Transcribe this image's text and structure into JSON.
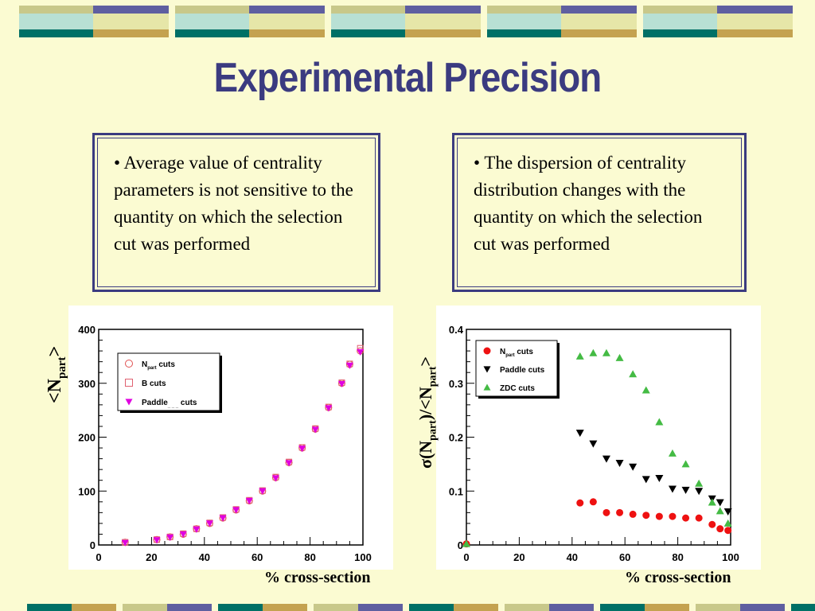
{
  "title": "Experimental Precision",
  "left_box": {
    "bullet": "•",
    "text": "Average value of centrality parameters is not sensitive to the quantity on which the selection cut was performed"
  },
  "right_box": {
    "bullet": "•",
    "text": "The dispersion of centrality distribution changes with the quantity on which the selection cut was performed"
  },
  "colors": {
    "background": "#fbfbd2",
    "title": "#3b3b80",
    "banner": [
      "#c8c88a",
      "#5f5fa0",
      "#b8e0d4",
      "#e6e6a8",
      "#007066",
      "#c4a250"
    ]
  },
  "chart_data": [
    {
      "type": "scatter",
      "ylabel": "<Npart>",
      "ylabel_main": "<N",
      "ylabel_sub": "part",
      "ylabel_end": ">",
      "xlabel": "% cross-section",
      "xlim": [
        0,
        100
      ],
      "ylim": [
        0,
        400
      ],
      "xticks": [
        0,
        20,
        40,
        60,
        80,
        100
      ],
      "yticks": [
        0,
        100,
        200,
        300,
        400
      ],
      "grid": false,
      "legend_position": "top-left",
      "legend": [
        {
          "main": "N",
          "sub": "part",
          "after": " cuts",
          "marker": "open-circle",
          "color": "#e05050"
        },
        {
          "main": "B cuts",
          "sub": "",
          "after": "",
          "marker": "open-square",
          "color": "#e06070"
        },
        {
          "main": "Paddle",
          "sub": "_ _ _",
          "after": " cuts",
          "marker": "triangle-down",
          "color": "#e000e0"
        }
      ],
      "series": [
        {
          "name": "Npart cuts",
          "x": [
            10,
            22,
            27,
            32,
            37,
            42,
            47,
            52,
            57,
            62,
            67,
            72,
            77,
            82,
            87,
            92,
            95,
            99
          ],
          "y": [
            5,
            10,
            15,
            20,
            30,
            40,
            50,
            65,
            82,
            100,
            125,
            153,
            180,
            215,
            255,
            300,
            335,
            360
          ]
        },
        {
          "name": "B cuts",
          "x": [
            10,
            22,
            27,
            32,
            37,
            42,
            47,
            52,
            57,
            62,
            67,
            72,
            77,
            82,
            87,
            92,
            95,
            99
          ],
          "y": [
            5,
            10,
            15,
            21,
            30,
            41,
            51,
            66,
            83,
            101,
            126,
            154,
            181,
            216,
            256,
            301,
            336,
            365
          ]
        },
        {
          "name": "Paddle cuts",
          "x": [
            10,
            22,
            27,
            32,
            37,
            42,
            47,
            52,
            57,
            62,
            67,
            72,
            77,
            82,
            87,
            92,
            95,
            99
          ],
          "y": [
            4,
            9,
            14,
            20,
            29,
            40,
            50,
            65,
            82,
            100,
            124,
            152,
            179,
            214,
            254,
            299,
            333,
            358
          ]
        }
      ]
    },
    {
      "type": "scatter",
      "ylabel": "σ(Npart)/<Npart>",
      "ylabel_parts": [
        "σ(N",
        "part",
        ")/<N",
        "part",
        ">"
      ],
      "xlabel": "% cross-section",
      "xlim": [
        0,
        100
      ],
      "ylim": [
        0,
        0.4
      ],
      "xticks": [
        0,
        20,
        40,
        60,
        80,
        100
      ],
      "yticks": [
        0,
        0.1,
        0.2,
        0.3,
        0.4
      ],
      "ytick_labels": [
        "0",
        "0.1",
        "0.2",
        "0.3",
        "0.4"
      ],
      "grid": false,
      "legend_position": "top-left",
      "legend": [
        {
          "main": "N",
          "sub": "part",
          "after": " cuts",
          "marker": "circle",
          "color": "#ee1111"
        },
        {
          "main": "Paddle cuts",
          "sub": "",
          "after": "",
          "marker": "triangle-down",
          "color": "#000000"
        },
        {
          "main": "ZDC cuts",
          "sub": "",
          "after": "",
          "marker": "triangle-up",
          "color": "#44bb44"
        }
      ],
      "series": [
        {
          "name": "Npart cuts",
          "x": [
            0,
            43,
            48,
            53,
            58,
            63,
            68,
            73,
            78,
            83,
            88,
            93,
            96,
            99
          ],
          "y": [
            0.002,
            0.078,
            0.08,
            0.06,
            0.06,
            0.057,
            0.055,
            0.053,
            0.053,
            0.05,
            0.05,
            0.038,
            0.03,
            0.027
          ]
        },
        {
          "name": "Paddle cuts",
          "x": [
            43,
            48,
            53,
            58,
            63,
            68,
            73,
            78,
            83,
            88,
            93,
            96,
            99
          ],
          "y": [
            0.208,
            0.188,
            0.16,
            0.152,
            0.145,
            0.122,
            0.124,
            0.104,
            0.102,
            0.1,
            0.086,
            0.079,
            0.062
          ]
        },
        {
          "name": "ZDC cuts",
          "x": [
            0,
            43,
            48,
            53,
            58,
            63,
            68,
            73,
            78,
            83,
            88,
            93,
            96,
            99
          ],
          "y": [
            0.002,
            0.35,
            0.356,
            0.356,
            0.347,
            0.317,
            0.287,
            0.228,
            0.17,
            0.15,
            0.114,
            0.079,
            0.063,
            0.04
          ]
        }
      ]
    }
  ]
}
